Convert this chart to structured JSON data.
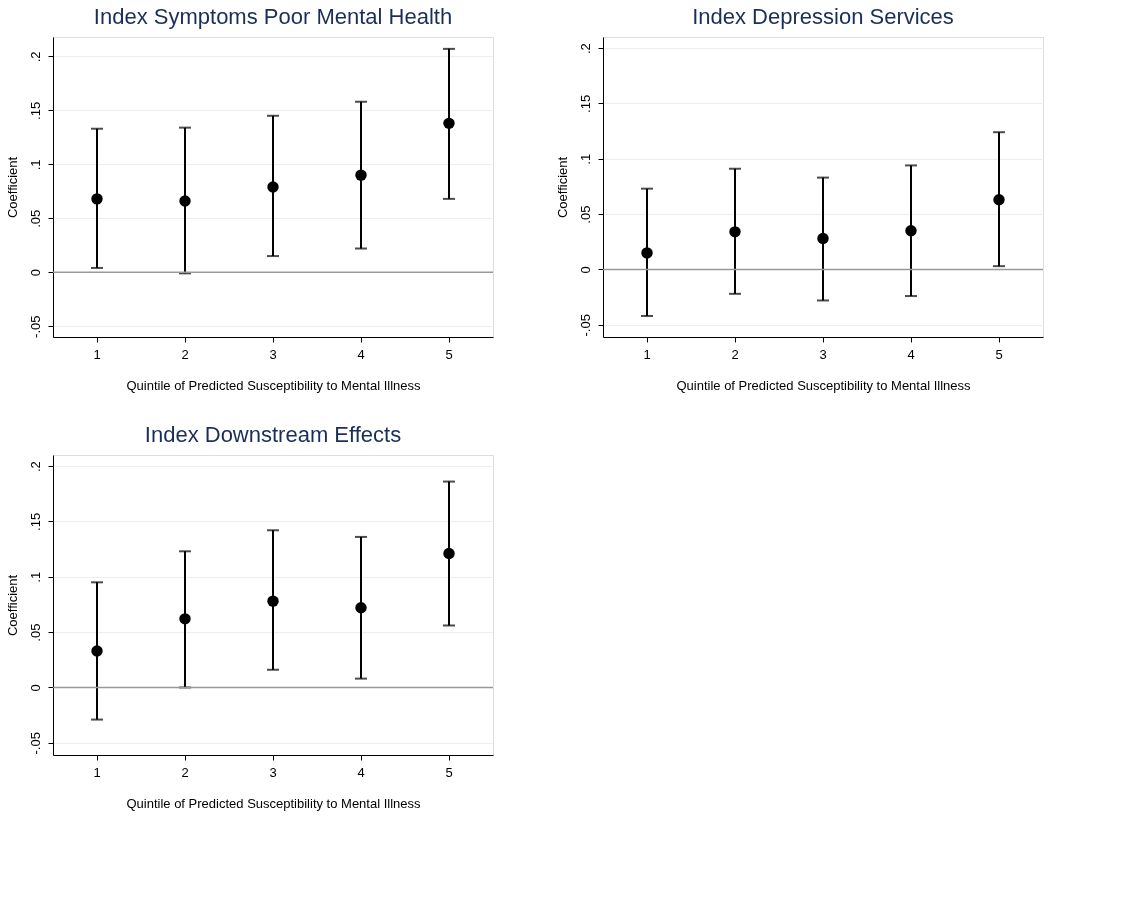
{
  "chart_data": [
    {
      "type": "scatter",
      "title": "Index Symptoms Poor Mental Health",
      "xlabel": "Quintile of Predicted Susceptibility to Mental Illness",
      "ylabel": "Coefficient",
      "categories": [
        "1",
        "2",
        "3",
        "4",
        "5"
      ],
      "series": [
        {
          "color": "#000000",
          "values": [
            0.068,
            0.066,
            0.079,
            0.09,
            0.138
          ],
          "errors": [
            [
              0.004,
              0.133
            ],
            [
              -0.001,
              0.134
            ],
            [
              0.015,
              0.145
            ],
            [
              0.022,
              0.158
            ],
            [
              0.068,
              0.207
            ]
          ]
        }
      ],
      "ylim": [
        -0.06,
        0.218
      ],
      "yticks": [
        {
          "value": -0.05,
          "label": "-.05"
        },
        0,
        {
          "value": 0.05,
          "label": ".05"
        },
        {
          "value": 0.1,
          "label": ".1"
        },
        {
          "value": 0.15,
          "label": ".15"
        },
        {
          "value": 0.2,
          "label": ".2"
        }
      ],
      "ref_lines": [
        {
          "axis": "y",
          "value": 0,
          "color": "#999999"
        }
      ],
      "grid": "y",
      "marker": "circle"
    },
    {
      "type": "scatter",
      "title": "Index Depression Services",
      "xlabel": "Quintile of Predicted Susceptibility to Mental Illness",
      "ylabel": "Coefficient",
      "categories": [
        "1",
        "2",
        "3",
        "4",
        "5"
      ],
      "series": [
        {
          "color": "#000000",
          "values": [
            0.015,
            0.034,
            0.028,
            0.035,
            0.063
          ],
          "errors": [
            [
              -0.042,
              0.073
            ],
            [
              -0.022,
              0.091
            ],
            [
              -0.028,
              0.083
            ],
            [
              -0.024,
              0.094
            ],
            [
              0.003,
              0.124
            ]
          ]
        }
      ],
      "ylim": [
        -0.061,
        0.21
      ],
      "yticks": [
        {
          "value": -0.05,
          "label": "-.05"
        },
        0,
        {
          "value": 0.05,
          "label": ".05"
        },
        {
          "value": 0.1,
          "label": ".1"
        },
        {
          "value": 0.15,
          "label": ".15"
        },
        {
          "value": 0.2,
          "label": ".2"
        }
      ],
      "ref_lines": [
        {
          "axis": "y",
          "value": 0,
          "color": "#999999"
        }
      ],
      "grid": "y",
      "marker": "circle"
    },
    {
      "type": "scatter",
      "title": "Index Downstream Effects",
      "xlabel": "Quintile of Predicted Susceptibility to Mental Illness",
      "ylabel": "Coefficient",
      "categories": [
        "1",
        "2",
        "3",
        "4",
        "5"
      ],
      "series": [
        {
          "color": "#000000",
          "values": [
            0.033,
            0.062,
            0.078,
            0.072,
            0.121
          ],
          "errors": [
            [
              -0.029,
              0.095
            ],
            [
              0.0,
              0.123
            ],
            [
              0.016,
              0.142
            ],
            [
              0.008,
              0.136
            ],
            [
              0.056,
              0.186
            ]
          ]
        }
      ],
      "ylim": [
        -0.061,
        0.21
      ],
      "yticks": [
        {
          "value": -0.05,
          "label": "-.05"
        },
        0,
        {
          "value": 0.05,
          "label": ".05"
        },
        {
          "value": 0.1,
          "label": ".1"
        },
        {
          "value": 0.15,
          "label": ".15"
        },
        {
          "value": 0.2,
          "label": ".2"
        }
      ],
      "ref_lines": [
        {
          "axis": "y",
          "value": 0,
          "color": "#999999"
        }
      ],
      "grid": "y",
      "marker": "circle"
    }
  ]
}
